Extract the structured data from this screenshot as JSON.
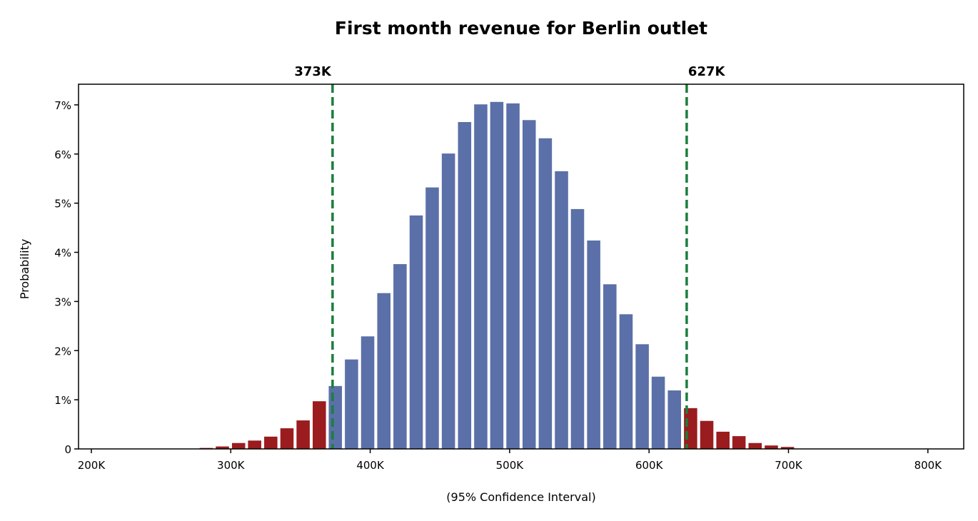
{
  "chart_data": {
    "type": "bar",
    "title": "First month revenue for Berlin outlet",
    "xlabel": "(95% Confidence Interval)",
    "ylabel": "Probability",
    "xlim": [
      190.8,
      825.7
    ],
    "ylim": [
      0,
      7.42
    ],
    "grid": false,
    "x_unit": "K",
    "y_unit": "%",
    "xticks": [
      200,
      300,
      400,
      500,
      600,
      700,
      800
    ],
    "xtick_labels": [
      "200K",
      "300K",
      "400K",
      "500K",
      "600K",
      "700K",
      "800K"
    ],
    "yticks": [
      0,
      1,
      2,
      3,
      4,
      5,
      6,
      7
    ],
    "ytick_labels": [
      "0",
      "1%",
      "2%",
      "3%",
      "4%",
      "5%",
      "6%",
      "7%"
    ],
    "bin_width": 11.58,
    "x": [
      282.4,
      294.0,
      305.6,
      317.1,
      328.7,
      340.3,
      351.9,
      363.5,
      375.0,
      386.6,
      398.2,
      409.8,
      421.4,
      433.0,
      444.5,
      456.1,
      467.7,
      479.3,
      490.8,
      502.4,
      514.0,
      525.6,
      537.2,
      548.7,
      560.3,
      571.9,
      583.5,
      595.1,
      606.6,
      618.2,
      629.8,
      641.4,
      653.0,
      664.5,
      676.1,
      687.7,
      699.3
    ],
    "values": [
      0.02,
      0.05,
      0.12,
      0.17,
      0.25,
      0.42,
      0.58,
      0.97,
      1.28,
      1.82,
      2.29,
      3.17,
      3.76,
      4.75,
      5.32,
      6.01,
      6.65,
      7.01,
      7.06,
      7.03,
      6.69,
      6.32,
      5.65,
      4.88,
      4.24,
      3.35,
      2.74,
      2.13,
      1.47,
      1.19,
      0.83,
      0.57,
      0.35,
      0.26,
      0.12,
      0.07,
      0.04
    ],
    "confidence_interval": {
      "lower": 373,
      "upper": 627,
      "lower_label": "373K",
      "upper_label": "627K"
    },
    "colors": {
      "inside": "#5b70a8",
      "outside": "#9a1c1f",
      "ci_line": "#1a7f3c"
    }
  }
}
